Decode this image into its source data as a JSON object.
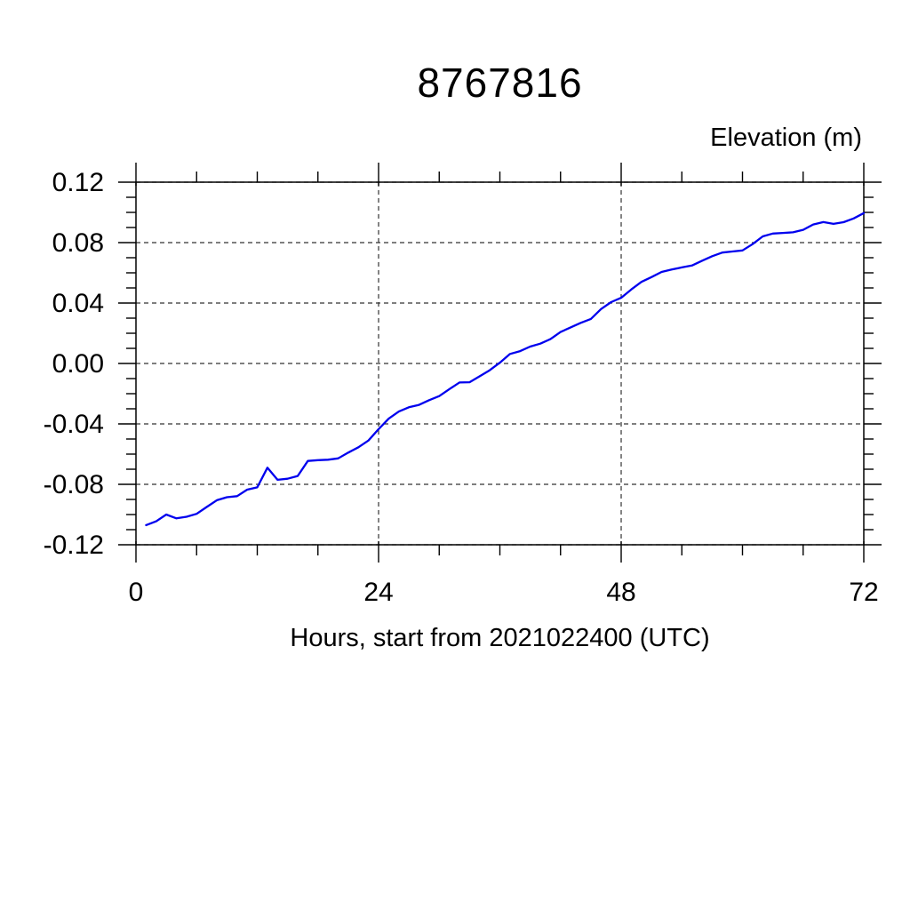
{
  "chart_data": {
    "type": "line",
    "title": "8767816",
    "ylabel": "Elevation (m)",
    "xlabel": "Hours, start from 2021022400 (UTC)",
    "xlim": [
      0,
      72
    ],
    "ylim": [
      -0.12,
      0.12
    ],
    "xticks": [
      0,
      24,
      48,
      72
    ],
    "xtick_labels": [
      "0",
      "24",
      "48",
      "72"
    ],
    "yticks": [
      0.12,
      0.08,
      0.04,
      0,
      -0.04,
      -0.08,
      -0.12
    ],
    "ytick_labels": [
      "0.12",
      "0.08",
      "0.04",
      "0.00",
      "-0.04",
      "-0.08",
      "-0.12"
    ],
    "x_minor_tick_interval": 6,
    "y_minor_tick_interval": 0.01,
    "grid": "dashed",
    "legend_position": "none",
    "line_color": "#0000ee",
    "series": [
      {
        "name": "elevation",
        "x": [
          1,
          2,
          3,
          4,
          5,
          6,
          7,
          8,
          9,
          10,
          11,
          12,
          13,
          14,
          15,
          16,
          17,
          18,
          19,
          20,
          21,
          22,
          23,
          24,
          25,
          26,
          27,
          28,
          29,
          30,
          31,
          32,
          33,
          34,
          35,
          36,
          37,
          38,
          39,
          40,
          41,
          42,
          43,
          44,
          45,
          46,
          47,
          48,
          49,
          50,
          51,
          52,
          53,
          54,
          55,
          56,
          57,
          58,
          59,
          60,
          61,
          62,
          63,
          64,
          65,
          66,
          67,
          68,
          69,
          70,
          71,
          72
        ],
        "y": [
          -0.107,
          -0.1045,
          -0.1,
          -0.1025,
          -0.1015,
          -0.0995,
          -0.095,
          -0.0905,
          -0.0885,
          -0.0878,
          -0.0835,
          -0.082,
          -0.069,
          -0.077,
          -0.0763,
          -0.0745,
          -0.0645,
          -0.064,
          -0.0637,
          -0.0628,
          -0.059,
          -0.0555,
          -0.051,
          -0.0435,
          -0.0365,
          -0.0318,
          -0.029,
          -0.0274,
          -0.0243,
          -0.0216,
          -0.017,
          -0.0126,
          -0.0124,
          -0.0085,
          -0.0045,
          0.0005,
          0.0063,
          0.0082,
          0.0112,
          0.0131,
          0.0161,
          0.0208,
          0.0239,
          0.0269,
          0.0295,
          0.036,
          0.0406,
          0.0435,
          0.049,
          0.054,
          0.0572,
          0.0606,
          0.0622,
          0.0636,
          0.0648,
          0.068,
          0.071,
          0.0734,
          0.0741,
          0.0748,
          0.079,
          0.0841,
          0.086,
          0.0864,
          0.0868,
          0.0885,
          0.092,
          0.0936,
          0.0924,
          0.0935,
          0.096,
          0.0995
        ]
      }
    ]
  }
}
